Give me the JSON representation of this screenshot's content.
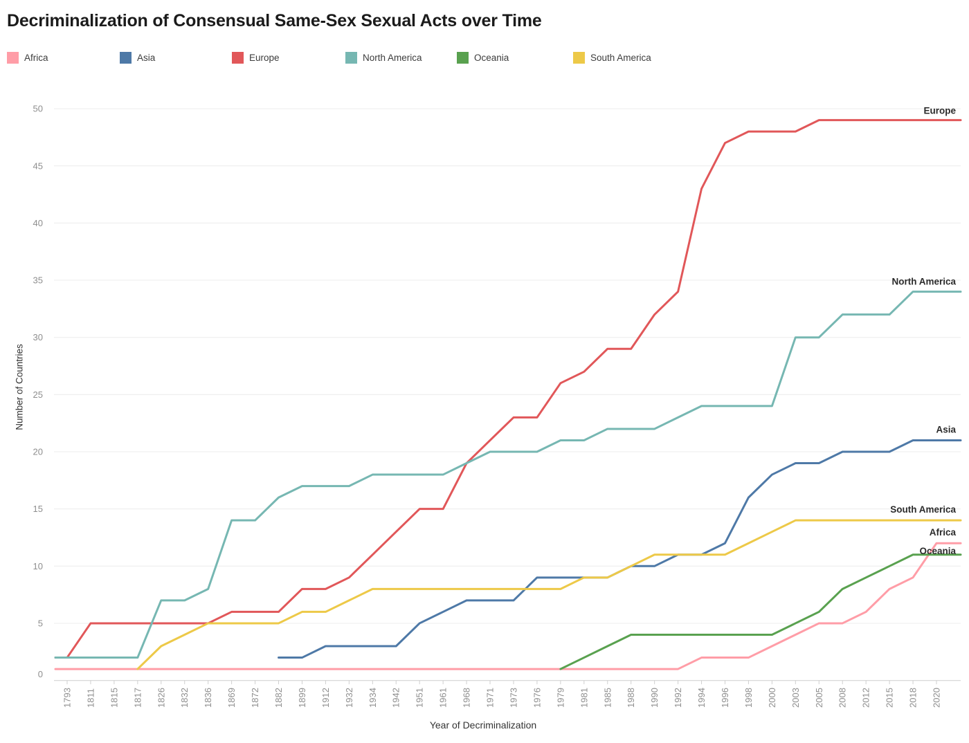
{
  "title": "Decriminalization of Consensual Same-Sex Sexual Acts over Time",
  "y_axis": {
    "title": "Number of Countries",
    "tick_step": 5,
    "min": 0,
    "max": 50
  },
  "x_axis": {
    "title": "Year of Decriminalization"
  },
  "colors": {
    "grid": "#ececec",
    "axis_line": "#d8d8d8",
    "tick_mark": "#cfcfcf",
    "tick_label": "#8e8e8e",
    "end_label": "#2b2b2b"
  },
  "chart_data": {
    "type": "line",
    "title": "Decriminalization of Consensual Same-Sex Sexual Acts over Time",
    "xlabel": "Year of Decriminalization",
    "ylabel": "Number of Countries",
    "ylim": [
      0,
      50
    ],
    "grid": "horizontal",
    "legend_position": "top",
    "categories": [
      "1793",
      "1811",
      "1815",
      "1817",
      "1826",
      "1832",
      "1836",
      "1869",
      "1872",
      "1882",
      "1899",
      "1912",
      "1932",
      "1934",
      "1942",
      "1951",
      "1961",
      "1968",
      "1971",
      "1973",
      "1976",
      "1979",
      "1981",
      "1985",
      "1988",
      "1990",
      "1992",
      "1994",
      "1996",
      "1998",
      "2000",
      "2003",
      "2005",
      "2008",
      "2012",
      "2015",
      "2018",
      "2020"
    ],
    "series": [
      {
        "name": "Africa",
        "color": "#ff9da7",
        "values": [
          1,
          1,
          1,
          1,
          1,
          1,
          1,
          1,
          1,
          1,
          1,
          1,
          1,
          1,
          1,
          1,
          1,
          1,
          1,
          1,
          1,
          1,
          1,
          1,
          1,
          1,
          1,
          2,
          2,
          2,
          3,
          4,
          5,
          5,
          6,
          8,
          9,
          12
        ]
      },
      {
        "name": "Asia",
        "color": "#4e79a7",
        "values": [
          null,
          null,
          null,
          null,
          null,
          null,
          null,
          null,
          null,
          2,
          2,
          3,
          3,
          3,
          3,
          5,
          6,
          7,
          7,
          7,
          9,
          9,
          9,
          9,
          10,
          10,
          11,
          11,
          12,
          16,
          18,
          19,
          19,
          20,
          20,
          20,
          21,
          21
        ]
      },
      {
        "name": "Europe",
        "color": "#e15759",
        "values": [
          2,
          5,
          5,
          5,
          5,
          5,
          5,
          6,
          6,
          6,
          8,
          8,
          9,
          11,
          13,
          15,
          15,
          19,
          21,
          23,
          23,
          26,
          27,
          29,
          29,
          32,
          34,
          43,
          47,
          48,
          48,
          48,
          49,
          49,
          49,
          49,
          49,
          49
        ]
      },
      {
        "name": "North America",
        "color": "#76b7b2",
        "values": [
          2,
          2,
          2,
          2,
          7,
          7,
          8,
          14,
          14,
          16,
          17,
          17,
          17,
          18,
          18,
          18,
          18,
          19,
          20,
          20,
          20,
          21,
          21,
          22,
          22,
          22,
          23,
          24,
          24,
          24,
          24,
          30,
          30,
          32,
          32,
          32,
          34,
          34
        ]
      },
      {
        "name": "Oceania",
        "color": "#59a14f",
        "values": [
          null,
          null,
          null,
          null,
          null,
          null,
          null,
          null,
          null,
          null,
          null,
          null,
          null,
          null,
          null,
          null,
          null,
          null,
          null,
          null,
          null,
          1,
          2,
          3,
          4,
          4,
          4,
          4,
          4,
          4,
          4,
          5,
          6,
          8,
          9,
          10,
          11,
          11
        ]
      },
      {
        "name": "South America",
        "color": "#edc948",
        "values": [
          null,
          null,
          null,
          1,
          3,
          4,
          5,
          5,
          5,
          5,
          6,
          6,
          7,
          8,
          8,
          8,
          8,
          8,
          8,
          8,
          8,
          8,
          9,
          9,
          10,
          11,
          11,
          11,
          11,
          12,
          13,
          14,
          14,
          14,
          14,
          14,
          14,
          14
        ]
      }
    ]
  }
}
